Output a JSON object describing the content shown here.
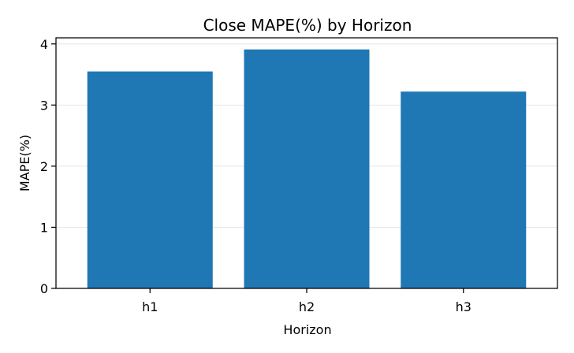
{
  "chart_data": {
    "type": "bar",
    "title": "Close MAPE(%) by Horizon",
    "xlabel": "Horizon",
    "ylabel": "MAPE(%)",
    "categories": [
      "h1",
      "h2",
      "h3"
    ],
    "values": [
      3.55,
      3.91,
      3.22
    ],
    "ylim": [
      0,
      4.1
    ],
    "yticks": [
      0,
      1,
      2,
      3,
      4
    ],
    "grid": "y-only",
    "colors": {
      "bar": "#1f77b4"
    }
  }
}
